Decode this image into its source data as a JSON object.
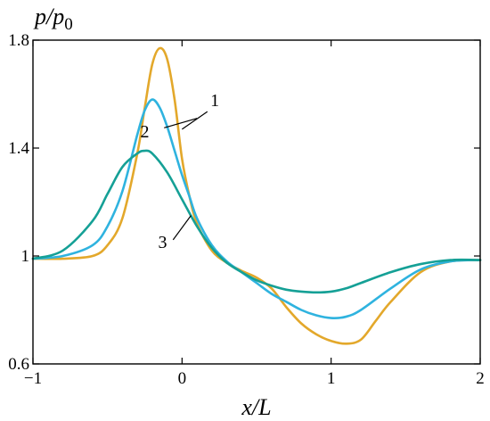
{
  "chart_data": {
    "type": "line",
    "title": "",
    "ylabel": {
      "main": "p/p",
      "sub": "0"
    },
    "xlabel": {
      "main": "x/L"
    },
    "xlim": [
      -1,
      2
    ],
    "ylim": [
      0.6,
      1.8
    ],
    "xticks": [
      -1,
      0,
      1,
      2
    ],
    "xtick_labels": [
      "−1",
      "0",
      "1",
      "2"
    ],
    "yticks": [
      0.6,
      1,
      1.4,
      1.8
    ],
    "ytick_labels": [
      "0.6",
      "1",
      "1.4",
      "1.8"
    ],
    "grid": false,
    "series": [
      {
        "name": "1",
        "color": "#E3A82B",
        "x": [
          -1.0,
          -0.8,
          -0.6,
          -0.5,
          -0.4,
          -0.3,
          -0.25,
          -0.2,
          -0.15,
          -0.1,
          -0.05,
          0.0,
          0.05,
          0.1,
          0.2,
          0.3,
          0.4,
          0.5,
          0.6,
          0.7,
          0.8,
          0.9,
          1.0,
          1.1,
          1.2,
          1.3,
          1.4,
          1.6,
          1.8,
          2.0
        ],
        "y": [
          0.99,
          0.99,
          1.0,
          1.04,
          1.14,
          1.38,
          1.55,
          1.71,
          1.77,
          1.73,
          1.58,
          1.36,
          1.22,
          1.12,
          1.02,
          0.975,
          0.945,
          0.92,
          0.88,
          0.81,
          0.75,
          0.71,
          0.685,
          0.675,
          0.69,
          0.76,
          0.83,
          0.94,
          0.98,
          0.985
        ]
      },
      {
        "name": "2",
        "color": "#2FB3DF",
        "x": [
          -1.0,
          -0.8,
          -0.6,
          -0.5,
          -0.4,
          -0.3,
          -0.25,
          -0.2,
          -0.15,
          -0.1,
          -0.05,
          0.0,
          0.05,
          0.1,
          0.2,
          0.3,
          0.4,
          0.5,
          0.6,
          0.7,
          0.8,
          0.9,
          1.0,
          1.1,
          1.2,
          1.4,
          1.6,
          1.8,
          2.0
        ],
        "y": [
          0.99,
          1.0,
          1.04,
          1.11,
          1.24,
          1.45,
          1.54,
          1.58,
          1.55,
          1.48,
          1.39,
          1.3,
          1.22,
          1.14,
          1.04,
          0.98,
          0.94,
          0.9,
          0.86,
          0.83,
          0.8,
          0.78,
          0.77,
          0.775,
          0.8,
          0.88,
          0.95,
          0.98,
          0.985
        ]
      },
      {
        "name": "3",
        "color": "#15A096",
        "x": [
          -1.0,
          -0.8,
          -0.6,
          -0.5,
          -0.4,
          -0.3,
          -0.25,
          -0.2,
          -0.1,
          0.0,
          0.1,
          0.2,
          0.3,
          0.4,
          0.5,
          0.6,
          0.7,
          0.8,
          0.9,
          1.0,
          1.1,
          1.2,
          1.4,
          1.6,
          1.8,
          2.0
        ],
        "y": [
          0.99,
          1.02,
          1.13,
          1.23,
          1.33,
          1.38,
          1.39,
          1.38,
          1.31,
          1.21,
          1.11,
          1.03,
          0.975,
          0.94,
          0.91,
          0.89,
          0.875,
          0.868,
          0.865,
          0.868,
          0.88,
          0.9,
          0.94,
          0.97,
          0.985,
          0.985
        ]
      }
    ],
    "annotations": [
      {
        "text": "1",
        "series": "1"
      },
      {
        "text": "2",
        "series": "2"
      },
      {
        "text": "3",
        "series": "3"
      }
    ]
  }
}
